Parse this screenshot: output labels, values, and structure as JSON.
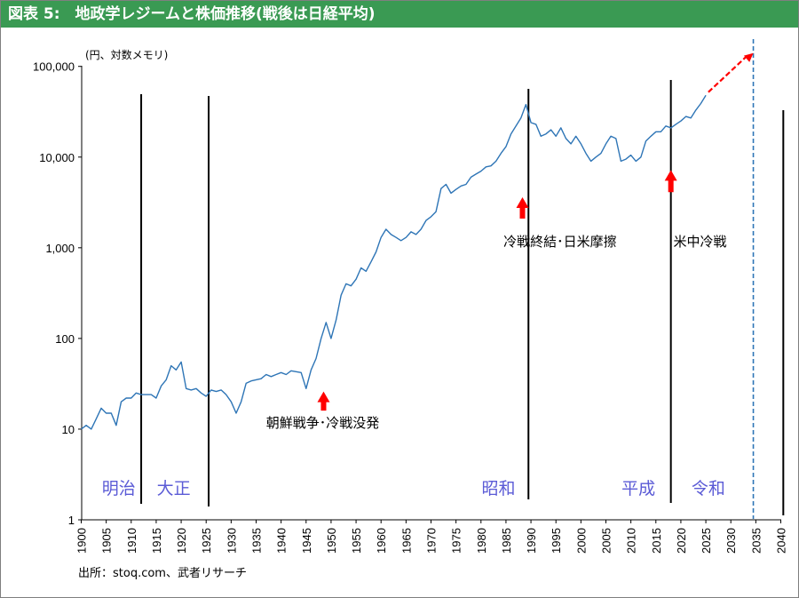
{
  "header": {
    "title": "図表 5:　地政学レジームと株価推移(戦後は日経平均)"
  },
  "source": "出所：stoq.com、武者リサーチ",
  "chart_data": {
    "type": "line",
    "title": "図表 5:　地政学レジームと株価推移(戦後は日経平均)",
    "ylabel": "(円、対数メモリ)",
    "xlabel": "",
    "yscale": "log",
    "ylim": [
      1,
      200000
    ],
    "xlim": [
      1900,
      2041
    ],
    "y_ticks": [
      {
        "v": 1,
        "label": "1"
      },
      {
        "v": 10,
        "label": "10"
      },
      {
        "v": 100,
        "label": "100"
      },
      {
        "v": 1000,
        "label": "1,000"
      },
      {
        "v": 10000,
        "label": "10,000"
      },
      {
        "v": 100000,
        "label": "100,000"
      }
    ],
    "x_ticks": [
      "1900",
      "1905",
      "1910",
      "1915",
      "1920",
      "1925",
      "1930",
      "1935",
      "1940",
      "1945",
      "1950",
      "1955",
      "1960",
      "1965",
      "1970",
      "1975",
      "1980",
      "1985",
      "1990",
      "1995",
      "2000",
      "2005",
      "2010",
      "2015",
      "2020",
      "2025",
      "2030",
      "2035",
      "2040"
    ],
    "series_color": "#2e75b6",
    "series": [
      {
        "x": [
          1900,
          1901,
          1902,
          1903,
          1904,
          1905,
          1906,
          1907,
          1908,
          1909,
          1910,
          1911,
          1912,
          1913,
          1914,
          1915,
          1916,
          1917,
          1918,
          1919,
          1920,
          1921,
          1922,
          1923,
          1924,
          1925,
          1926,
          1927,
          1928,
          1929,
          1930,
          1931,
          1932,
          1933,
          1934,
          1935,
          1936,
          1937,
          1938,
          1939,
          1940,
          1941,
          1942,
          1943,
          1944,
          1945,
          1946,
          1947,
          1948,
          1949,
          1950,
          1951,
          1952,
          1953,
          1954,
          1955,
          1956,
          1957,
          1958,
          1959,
          1960,
          1961,
          1962,
          1963,
          1964,
          1965,
          1966,
          1967,
          1968,
          1969,
          1970,
          1971,
          1972,
          1973,
          1974,
          1975,
          1976,
          1977,
          1978,
          1979,
          1980,
          1981,
          1982,
          1983,
          1984,
          1985,
          1986,
          1987,
          1988,
          1989,
          1990,
          1991,
          1992,
          1993,
          1994,
          1995,
          1996,
          1997,
          1998,
          1999,
          2000,
          2001,
          2002,
          2003,
          2004,
          2005,
          2006,
          2007,
          2008,
          2009,
          2010,
          2011,
          2012,
          2013,
          2014,
          2015,
          2016,
          2017,
          2018,
          2019,
          2020,
          2021,
          2022,
          2023,
          2024,
          2025
        ],
        "values": [
          10,
          11,
          10,
          13,
          17,
          15,
          15,
          11,
          20,
          22,
          22,
          25,
          24,
          24,
          24,
          22,
          30,
          35,
          50,
          45,
          55,
          28,
          27,
          28,
          25,
          23,
          27,
          26,
          27,
          24,
          20,
          15,
          20,
          32,
          34,
          35,
          36,
          40,
          38,
          40,
          42,
          40,
          44,
          43,
          42,
          28,
          45,
          60,
          100,
          150,
          100,
          160,
          300,
          400,
          380,
          450,
          600,
          550,
          700,
          900,
          1300,
          1600,
          1400,
          1300,
          1200,
          1300,
          1500,
          1400,
          1600,
          2000,
          2200,
          2500,
          4500,
          5000,
          4000,
          4400,
          4800,
          5000,
          6000,
          6500,
          7000,
          7800,
          8000,
          9000,
          11000,
          13000,
          18000,
          22000,
          27000,
          38000,
          24000,
          23000,
          17000,
          18000,
          20000,
          17000,
          21000,
          16000,
          14000,
          17000,
          14000,
          11000,
          9000,
          10000,
          11000,
          14000,
          17000,
          16000,
          9000,
          9500,
          10500,
          9000,
          10000,
          15000,
          17000,
          19000,
          19000,
          22000,
          21000,
          23000,
          25000,
          28000,
          27000,
          33000,
          39000,
          48000
        ]
      }
    ],
    "projection": {
      "x": [
        2025.5,
        2034.5
      ],
      "values": [
        52000,
        140000
      ],
      "color": "#ff0000"
    },
    "vertical_markers": [
      1912,
      1925.5,
      1989.5,
      2018
    ],
    "dashed_marker": 2034.5,
    "right_edge_marker": 2040.5,
    "era_labels": [
      {
        "x": 1907.5,
        "label": "明治"
      },
      {
        "x": 1918.5,
        "label": "大正"
      },
      {
        "x": 1983.5,
        "label": "昭和"
      },
      {
        "x": 2011.5,
        "label": "平成"
      },
      {
        "x": 2025.5,
        "label": "令和"
      }
    ],
    "events": [
      {
        "x": 1948.5,
        "arrow_tip": 26,
        "arrow_base": 16,
        "label": "朝鮮戦争･冷戦没発",
        "label_y": 10,
        "label_anchor": 1937
      },
      {
        "x": 1988.3,
        "arrow_tip": 3600,
        "arrow_base": 2100,
        "label": "冷戦終結･日米摩擦",
        "label_y": 1000,
        "label_anchor": 1984.5
      },
      {
        "x": 2018,
        "arrow_tip": 7200,
        "arrow_base": 4100,
        "label": "米中冷戦",
        "label_y": 1000,
        "label_anchor": 2018.5
      }
    ]
  }
}
